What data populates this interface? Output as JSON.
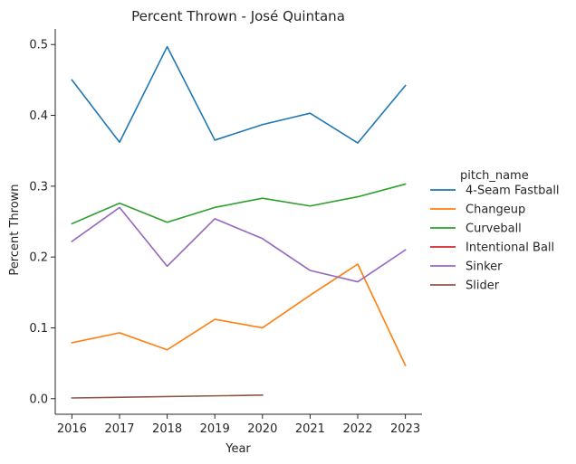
{
  "chart_data": {
    "type": "line",
    "title": "Percent Thrown - José Quintana",
    "xlabel": "Year",
    "ylabel": "Percent Thrown",
    "x": [
      2016,
      2017,
      2018,
      2019,
      2020,
      2021,
      2022,
      2023
    ],
    "x_ticks": [
      "2016",
      "2017",
      "2018",
      "2019",
      "2020",
      "2021",
      "2022",
      "2023"
    ],
    "y_ticks": [
      "0.0",
      "0.1",
      "0.2",
      "0.3",
      "0.4",
      "0.5"
    ],
    "ylim": [
      -0.022,
      0.522
    ],
    "xlim": [
      2015.65,
      2023.35
    ],
    "grid": false,
    "legend": {
      "title": "pitch_name",
      "placement": "right"
    },
    "series": [
      {
        "name": "4-Seam Fastball",
        "color": "#1f77b4",
        "x": [
          2016,
          2017,
          2018,
          2019,
          2020,
          2021,
          2022,
          2023
        ],
        "values": [
          0.45,
          0.362,
          0.497,
          0.365,
          0.387,
          0.403,
          0.361,
          0.442
        ]
      },
      {
        "name": "Changeup",
        "color": "#ff7f0e",
        "x": [
          2016,
          2017,
          2018,
          2019,
          2020,
          2021,
          2022,
          2023
        ],
        "values": [
          0.079,
          0.093,
          0.069,
          0.112,
          0.1,
          0.146,
          0.19,
          0.047
        ]
      },
      {
        "name": "Curveball",
        "color": "#2ca02c",
        "x": [
          2016,
          2017,
          2018,
          2019,
          2020,
          2021,
          2022,
          2023
        ],
        "values": [
          0.247,
          0.276,
          0.249,
          0.27,
          0.283,
          0.272,
          0.285,
          0.303
        ]
      },
      {
        "name": "Intentional Ball",
        "color": "#d62728",
        "x": [],
        "values": []
      },
      {
        "name": "Sinker",
        "color": "#9467bd",
        "x": [
          2016,
          2017,
          2018,
          2019,
          2020,
          2021,
          2022,
          2023
        ],
        "values": [
          0.222,
          0.27,
          0.187,
          0.254,
          0.226,
          0.181,
          0.165,
          0.21
        ]
      },
      {
        "name": "Slider",
        "color": "#8c564b",
        "x": [
          2016,
          2020
        ],
        "values": [
          0.001,
          0.005
        ]
      }
    ]
  }
}
